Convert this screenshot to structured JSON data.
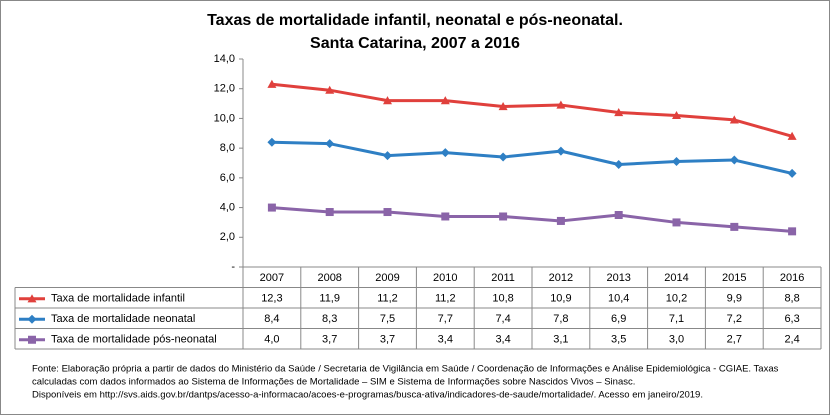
{
  "chart_data": {
    "type": "line",
    "title": "Taxas de mortalidade infantil, neonatal e pós-neonatal.",
    "subtitle": "Santa Catarina, 2007 a 2016",
    "categories": [
      "2007",
      "2008",
      "2009",
      "2010",
      "2011",
      "2012",
      "2013",
      "2014",
      "2015",
      "2016"
    ],
    "series": [
      {
        "name": "Taxa de mortalidade infantil",
        "color": "#e0403c",
        "marker": "triangle",
        "values": [
          12.3,
          11.9,
          11.2,
          11.2,
          10.8,
          10.9,
          10.4,
          10.2,
          9.9,
          8.8
        ],
        "value_labels": [
          "12,3",
          "11,9",
          "11,2",
          "11,2",
          "10,8",
          "10,9",
          "10,4",
          "10,2",
          "9,9",
          "8,8"
        ]
      },
      {
        "name": "Taxa de mortalidade neonatal",
        "color": "#2e7fc4",
        "marker": "diamond",
        "values": [
          8.4,
          8.3,
          7.5,
          7.7,
          7.4,
          7.8,
          6.9,
          7.1,
          7.2,
          6.3
        ],
        "value_labels": [
          "8,4",
          "8,3",
          "7,5",
          "7,7",
          "7,4",
          "7,8",
          "6,9",
          "7,1",
          "7,2",
          "6,3"
        ]
      },
      {
        "name": "Taxa de mortalidade pós-neonatal",
        "color": "#8a64a8",
        "marker": "square",
        "values": [
          4.0,
          3.7,
          3.7,
          3.4,
          3.4,
          3.1,
          3.5,
          3.0,
          2.7,
          2.4
        ],
        "value_labels": [
          "4,0",
          "3,7",
          "3,7",
          "3,4",
          "3,4",
          "3,1",
          "3,5",
          "3,0",
          "2,7",
          "2,4"
        ]
      }
    ],
    "ylim": [
      0,
      14
    ],
    "yticks": [
      {
        "value": 0,
        "label": "-"
      },
      {
        "value": 2,
        "label": "2,0"
      },
      {
        "value": 4,
        "label": "4,0"
      },
      {
        "value": 6,
        "label": "6,0"
      },
      {
        "value": 8,
        "label": "8,0"
      },
      {
        "value": 10,
        "label": "10,0"
      },
      {
        "value": 12,
        "label": "12,0"
      },
      {
        "value": 14,
        "label": "14,0"
      }
    ],
    "notes": [
      "Fonte: Elaboração própria a partir de dados do Ministério da Saúde / Secretaria de Vigilância em Saúde / Coordenação de Informações e Análise Epidemiológica - CGIAE.  Taxas",
      "calculadas com dados informados ao Sistema de Informações de Mortalidade – SIM e Sistema de Informações sobre Nascidos Vivos – Sinasc.",
      "Disponíveis em  http://svs.aids.gov.br/dantps/acesso-a-informacao/acoes-e-programas/busca-ativa/indicadores-de-saude/mortalidade/. Acesso em janeiro/2019."
    ]
  }
}
